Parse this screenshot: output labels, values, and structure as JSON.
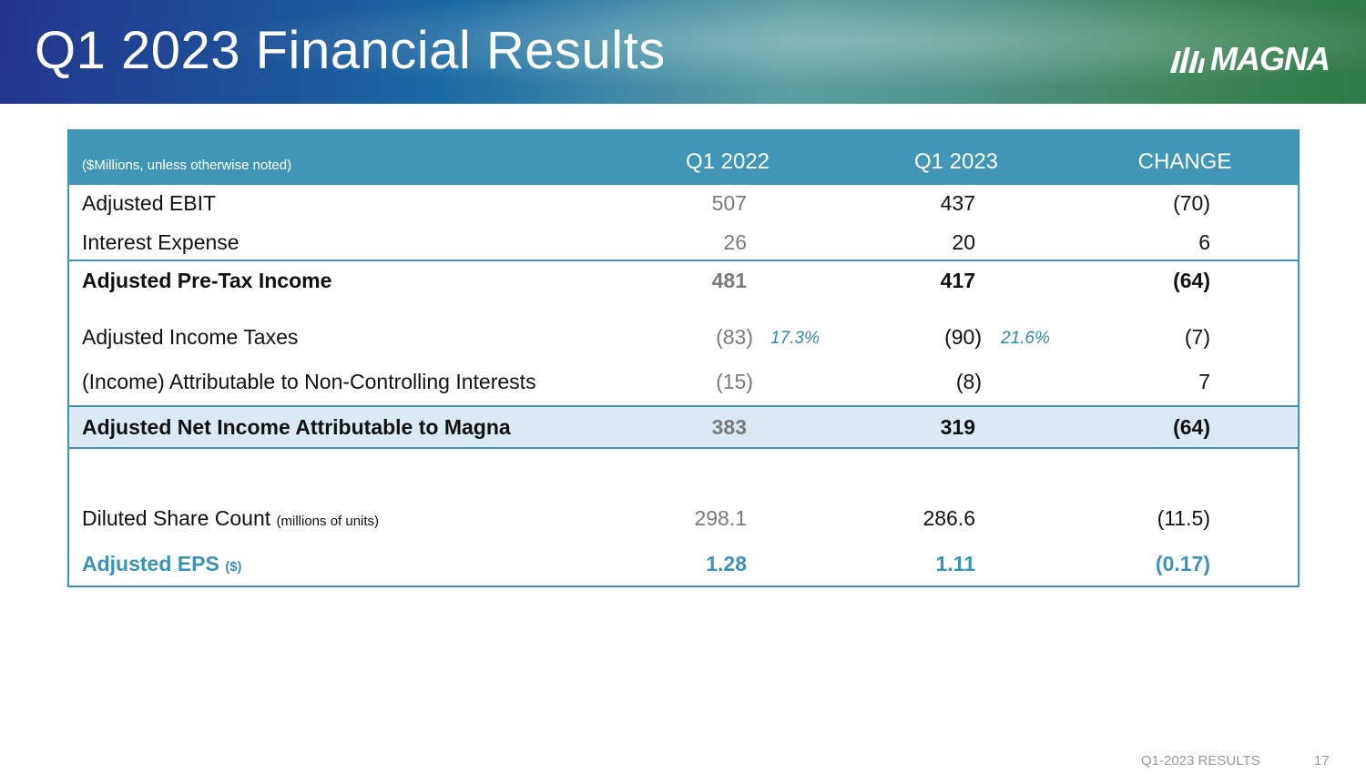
{
  "header": {
    "title": "Q1 2023 Financial Results",
    "logo_text": "MAGNA"
  },
  "table": {
    "note": "($Millions, unless otherwise noted)",
    "columns": [
      "Q1 2022",
      "Q1 2023",
      "CHANGE"
    ],
    "rows": [
      {
        "label": "Adjusted EBIT",
        "q1_2022": "507",
        "q1_2023": "437",
        "change": "(70)"
      },
      {
        "label": "Interest Expense",
        "q1_2022": "26",
        "q1_2023": "20",
        "change": "6"
      },
      {
        "label": "Adjusted Pre-Tax Income",
        "q1_2022": "481",
        "q1_2023": "417",
        "change": "(64)"
      },
      {
        "label": "Adjusted Income Taxes",
        "q1_2022": "(83)",
        "q1_2022_rate": "17.3%",
        "q1_2023": "(90)",
        "q1_2023_rate": "21.6%",
        "change": "(7)"
      },
      {
        "label": "(Income) Attributable to Non-Controlling Interests",
        "q1_2022": "(15)",
        "q1_2023": "(8)",
        "change": "7"
      },
      {
        "label": "Adjusted Net Income Attributable to Magna",
        "q1_2022": "383",
        "q1_2023": "319",
        "change": "(64)"
      },
      {
        "label": "Diluted Share Count",
        "label_suffix": "(millions of units)",
        "q1_2022": "298.1",
        "q1_2023": "286.6",
        "change": "(11.5)"
      },
      {
        "label": "Adjusted EPS",
        "label_suffix": "($)",
        "q1_2022": "1.28",
        "q1_2023": "1.11",
        "change": "(0.17)"
      }
    ]
  },
  "footer": {
    "label": "Q1-2023 RESULTS",
    "page_number": "17"
  },
  "colors": {
    "header_blue": "#23358c",
    "header_green": "#2f7a44",
    "table_header": "#4196b6",
    "highlight_row": "#dbeaf2",
    "accent_teal": "#3c93b6"
  }
}
